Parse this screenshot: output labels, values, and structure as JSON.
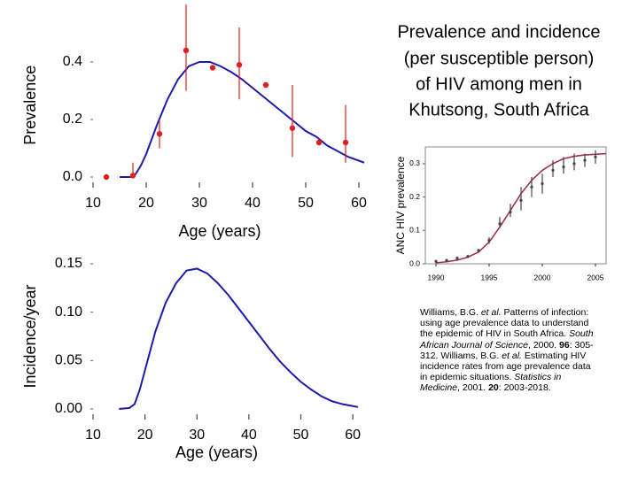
{
  "title": [
    "Prevalence and incidence",
    "(per susceptible person)",
    "of HIV among men in",
    "Khutsong, South Africa"
  ],
  "reference": [
    {
      "text": "Williams, B.G. ",
      "style": "normal"
    },
    {
      "text": "et al.",
      "style": "italic"
    },
    {
      "text": " Patterns of infection: using age prevalence data to understand the epidemic of HIV in South Africa. ",
      "style": "normal"
    },
    {
      "text": "South African Journal of Science",
      "style": "italic"
    },
    {
      "text": ", 2000. ",
      "style": "normal"
    },
    {
      "text": "96",
      "style": "bold"
    },
    {
      "text": ": 305-312. Williams, B.G. ",
      "style": "normal"
    },
    {
      "text": "et al.",
      "style": "italic"
    },
    {
      "text": " Estimating HIV incidence rates from age prevalence data in epidemic situations. ",
      "style": "normal"
    },
    {
      "text": "Statistics in Medicine",
      "style": "italic"
    },
    {
      "text": ", 2001. ",
      "style": "normal"
    },
    {
      "text": "20",
      "style": "bold"
    },
    {
      "text": ": 2003-2018.",
      "style": "normal"
    }
  ],
  "chart_data": [
    {
      "type": "line",
      "y_label": "Prevalence",
      "x_label": "Age (years)",
      "frame": false,
      "xlim": [
        10,
        61
      ],
      "ylim": [
        0,
        0.5
      ],
      "xticks": [
        10,
        20,
        30,
        40,
        50,
        60
      ],
      "yticks": [
        {
          "value": 0,
          "label": "0.0"
        },
        0.2,
        0.4
      ],
      "series": [
        {
          "type": "line",
          "color": "#1c1ca8",
          "x": [
            15,
            17,
            18,
            19,
            20,
            22,
            24,
            26,
            28,
            30,
            32,
            34,
            36,
            38,
            40,
            42,
            44,
            46,
            48,
            50,
            52,
            54,
            56,
            58,
            61
          ],
          "values": [
            0,
            0,
            0.01,
            0.04,
            0.08,
            0.18,
            0.27,
            0.34,
            0.385,
            0.4,
            0.4,
            0.385,
            0.365,
            0.34,
            0.31,
            0.28,
            0.25,
            0.22,
            0.19,
            0.16,
            0.14,
            0.11,
            0.09,
            0.07,
            0.05
          ]
        },
        {
          "type": "scatter",
          "color": "#e02020",
          "x": [
            12.5,
            17.5,
            22.5,
            27.5,
            32.5,
            37.5,
            42.5,
            47.5,
            52.5,
            57.5
          ],
          "values": [
            0,
            0.005,
            0.15,
            0.44,
            0.38,
            0.39,
            0.32,
            0.17,
            0.12,
            0.12
          ],
          "low": [
            0,
            0,
            0.1,
            0.3,
            0.38,
            0.27,
            0.32,
            0.07,
            0.12,
            0.05
          ],
          "high": [
            0,
            0.05,
            0.2,
            0.6,
            0.38,
            0.52,
            0.32,
            0.32,
            0.12,
            0.25
          ]
        }
      ]
    },
    {
      "type": "line",
      "y_label": "Incidence/year",
      "x_label": "Age (years)",
      "frame": false,
      "xlim": [
        10,
        61
      ],
      "ylim": [
        0,
        0.15
      ],
      "xticks": [
        10,
        20,
        30,
        40,
        50,
        60
      ],
      "yticks": [
        {
          "value": 0,
          "label": "0.00"
        },
        {
          "value": 0.05,
          "label": "0.05"
        },
        {
          "value": 0.1,
          "label": "0.10"
        },
        {
          "value": 0.15,
          "label": "0.15"
        }
      ],
      "series": [
        {
          "type": "line",
          "color": "#1c1ca8",
          "x": [
            15,
            17,
            18,
            19,
            20,
            22,
            24,
            26,
            28,
            30,
            32,
            34,
            36,
            38,
            40,
            42,
            44,
            46,
            48,
            50,
            52,
            54,
            56,
            58,
            60,
            61
          ],
          "values": [
            0,
            0.001,
            0.005,
            0.02,
            0.04,
            0.08,
            0.11,
            0.13,
            0.143,
            0.145,
            0.14,
            0.13,
            0.118,
            0.104,
            0.09,
            0.076,
            0.062,
            0.049,
            0.038,
            0.028,
            0.02,
            0.013,
            0.008,
            0.005,
            0.003,
            0.002
          ]
        }
      ]
    },
    {
      "type": "line",
      "y_label": "ANC HIV prevalence",
      "frame": true,
      "xlim": [
        1989,
        2006
      ],
      "ylim": [
        0,
        0.35
      ],
      "xticks": [
        1990,
        1995,
        2000,
        2005
      ],
      "yticks": [
        {
          "value": 0,
          "label": "0.0"
        },
        0.1,
        0.2,
        0.3
      ],
      "series": [
        {
          "type": "line",
          "color": "#a0305a",
          "x": [
            1990,
            1991,
            1992,
            1993,
            1994,
            1995,
            1996,
            1997,
            1998,
            1999,
            2000,
            2001,
            2002,
            2003,
            2004,
            2005,
            2006
          ],
          "values": [
            0.003,
            0.006,
            0.011,
            0.02,
            0.035,
            0.065,
            0.11,
            0.16,
            0.21,
            0.25,
            0.28,
            0.3,
            0.315,
            0.322,
            0.326,
            0.328,
            0.33
          ]
        },
        {
          "type": "scatter",
          "color": "#444444",
          "x": [
            1990,
            1991,
            1992,
            1993,
            1994,
            1995,
            1996,
            1997,
            1998,
            1999,
            2000,
            2001,
            2002,
            2003,
            2004,
            2005
          ],
          "values": [
            0.007,
            0.01,
            0.017,
            0.022,
            0.04,
            0.07,
            0.12,
            0.155,
            0.19,
            0.23,
            0.24,
            0.28,
            0.29,
            0.3,
            0.31,
            0.32
          ],
          "low": [
            0.002,
            0.005,
            0.012,
            0.017,
            0.035,
            0.06,
            0.11,
            0.14,
            0.16,
            0.2,
            0.21,
            0.26,
            0.27,
            0.28,
            0.29,
            0.3
          ],
          "high": [
            0.012,
            0.015,
            0.022,
            0.027,
            0.045,
            0.08,
            0.14,
            0.18,
            0.23,
            0.26,
            0.27,
            0.31,
            0.32,
            0.33,
            0.33,
            0.34
          ]
        }
      ]
    }
  ]
}
